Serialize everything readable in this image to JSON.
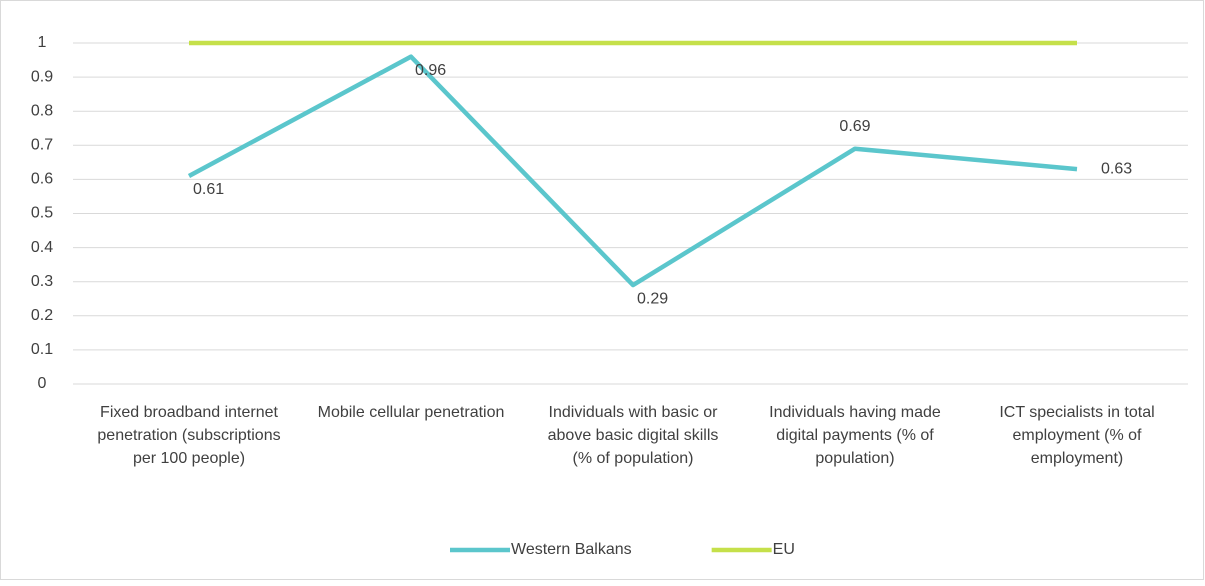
{
  "chart_data": {
    "type": "line",
    "categories": [
      "Fixed broadband internet penetration (subscriptions per 100 people)",
      "Mobile cellular penetration",
      "Individuals with basic or above basic digital skills (% of population)",
      "Individuals having made digital payments (% of population)",
      "ICT specialists in total employment (% of employment)"
    ],
    "series": [
      {
        "name": "Western Balkans",
        "color": "#5bc6cc",
        "values": [
          0.61,
          0.96,
          0.29,
          0.69,
          0.63
        ]
      },
      {
        "name": "EU",
        "color": "#c5e04a",
        "values": [
          1,
          1,
          1,
          1,
          1
        ]
      }
    ],
    "ylim": [
      0,
      1
    ],
    "yticks": [
      0,
      0.1,
      0.2,
      0.3,
      0.4,
      0.5,
      0.6,
      0.7,
      0.8,
      0.9,
      1
    ],
    "grid": true,
    "legend": "bottom"
  }
}
